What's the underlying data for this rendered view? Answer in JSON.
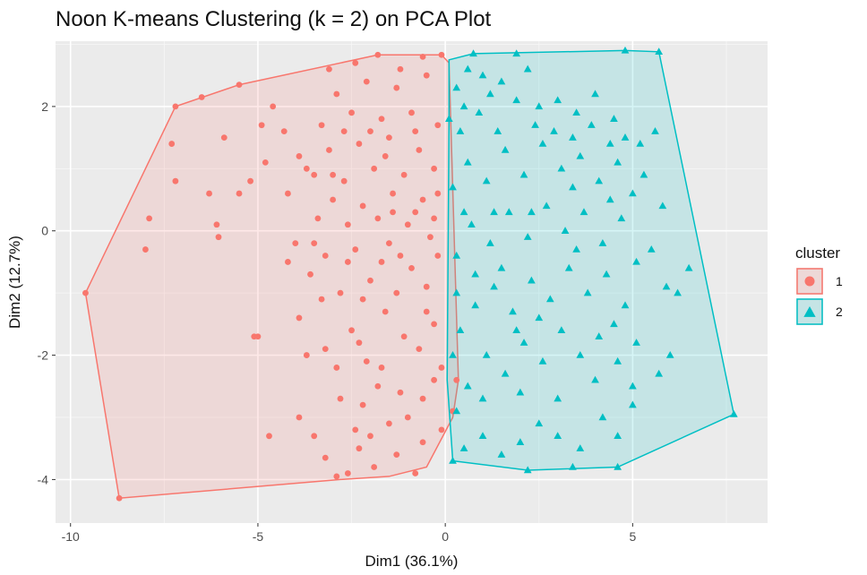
{
  "chart_data": {
    "type": "scatter",
    "title": "Noon K-means Clustering (k = 2) on PCA Plot",
    "xlabel": "Dim1 (36.1%)",
    "ylabel": "Dim2 (12.7%)",
    "xlim": [
      -10.4,
      8.6
    ],
    "ylim": [
      -4.7,
      3.05
    ],
    "x_ticks": [
      -10,
      -5,
      0,
      5
    ],
    "y_ticks": [
      -4,
      -2,
      0,
      2
    ],
    "x_tick_labels": [
      "-10",
      "-5",
      "0",
      "5"
    ],
    "y_tick_labels": [
      "-4",
      "-2",
      "0",
      "2"
    ],
    "grid": true,
    "legend": {
      "title": "cluster",
      "position": "right"
    },
    "series": [
      {
        "name": "1",
        "color": "#F8766D",
        "shape": "circle",
        "hull": [
          [
            -9.6,
            -1.0
          ],
          [
            -7.2,
            2.0
          ],
          [
            -5.5,
            2.35
          ],
          [
            -1.8,
            2.83
          ],
          [
            -0.1,
            2.83
          ],
          [
            0.1,
            2.7
          ],
          [
            0.35,
            -2.4
          ],
          [
            0.2,
            -3.0
          ],
          [
            -0.5,
            -3.8
          ],
          [
            -1.5,
            -3.95
          ],
          [
            -2.8,
            -4.0
          ],
          [
            -8.7,
            -4.3
          ]
        ],
        "points": [
          [
            -9.6,
            -1.0
          ],
          [
            -8.7,
            -4.3
          ],
          [
            -7.9,
            0.2
          ],
          [
            -8.0,
            -0.3
          ],
          [
            -7.2,
            2.0
          ],
          [
            -7.3,
            1.4
          ],
          [
            -7.2,
            0.8
          ],
          [
            -6.5,
            2.15
          ],
          [
            -6.3,
            0.6
          ],
          [
            -6.1,
            0.1
          ],
          [
            -6.05,
            -0.1
          ],
          [
            -5.9,
            1.5
          ],
          [
            -5.5,
            2.35
          ],
          [
            -5.5,
            0.6
          ],
          [
            -5.2,
            0.8
          ],
          [
            -5.1,
            -1.7
          ],
          [
            -4.8,
            1.1
          ],
          [
            -4.6,
            2.0
          ],
          [
            -4.3,
            1.6
          ],
          [
            -4.2,
            0.6
          ],
          [
            -4.2,
            -0.5
          ],
          [
            -4.0,
            -0.2
          ],
          [
            -3.9,
            1.2
          ],
          [
            -4.7,
            -3.3
          ],
          [
            -5.0,
            -1.7
          ],
          [
            -4.9,
            1.7
          ],
          [
            -3.7,
            -2.0
          ],
          [
            -3.9,
            -3.0
          ],
          [
            -3.2,
            -3.65
          ],
          [
            -3.5,
            -3.3
          ],
          [
            -2.9,
            -3.95
          ],
          [
            -2.6,
            -3.9
          ],
          [
            -2.4,
            -3.2
          ],
          [
            -2.2,
            -2.8
          ],
          [
            -2.0,
            -3.3
          ],
          [
            -1.8,
            -2.5
          ],
          [
            -1.5,
            -3.1
          ],
          [
            -1.3,
            -3.6
          ],
          [
            -1.0,
            -3.0
          ],
          [
            -0.8,
            -3.9
          ],
          [
            -0.6,
            -2.7
          ],
          [
            -0.3,
            -2.4
          ],
          [
            -0.1,
            -3.2
          ],
          [
            -0.1,
            -2.2
          ],
          [
            0.2,
            -2.9
          ],
          [
            0.3,
            -2.4
          ],
          [
            -3.9,
            -1.4
          ],
          [
            -3.2,
            -1.9
          ],
          [
            -2.9,
            -2.2
          ],
          [
            -2.5,
            -1.6
          ],
          [
            -2.1,
            -2.1
          ],
          [
            -1.6,
            -1.3
          ],
          [
            -1.1,
            -1.7
          ],
          [
            -0.7,
            -1.9
          ],
          [
            -0.3,
            -1.5
          ],
          [
            -3.6,
            -0.7
          ],
          [
            -3.2,
            -0.4
          ],
          [
            -2.8,
            -1.0
          ],
          [
            -2.4,
            -0.3
          ],
          [
            -2.0,
            -0.8
          ],
          [
            -1.7,
            -0.5
          ],
          [
            -1.3,
            -1.0
          ],
          [
            -0.9,
            -0.6
          ],
          [
            -0.5,
            -0.9
          ],
          [
            -0.2,
            -0.4
          ],
          [
            -3.4,
            0.2
          ],
          [
            -3.0,
            0.5
          ],
          [
            -2.6,
            0.1
          ],
          [
            -2.2,
            0.4
          ],
          [
            -1.8,
            0.2
          ],
          [
            -1.4,
            0.6
          ],
          [
            -1.0,
            0.1
          ],
          [
            -0.6,
            0.5
          ],
          [
            -0.3,
            0.2
          ],
          [
            -3.5,
            0.9
          ],
          [
            -3.1,
            1.3
          ],
          [
            -2.7,
            0.8
          ],
          [
            -2.3,
            1.4
          ],
          [
            -1.9,
            1.0
          ],
          [
            -1.5,
            1.5
          ],
          [
            -1.1,
            0.9
          ],
          [
            -0.7,
            1.3
          ],
          [
            -0.3,
            1.0
          ],
          [
            -3.3,
            1.7
          ],
          [
            -2.9,
            2.2
          ],
          [
            -2.5,
            1.9
          ],
          [
            -2.1,
            2.4
          ],
          [
            -1.7,
            1.8
          ],
          [
            -1.3,
            2.3
          ],
          [
            -0.9,
            1.9
          ],
          [
            -0.5,
            2.5
          ],
          [
            -0.2,
            1.7
          ],
          [
            -3.1,
            2.6
          ],
          [
            -2.4,
            2.7
          ],
          [
            -1.8,
            2.83
          ],
          [
            -1.2,
            2.6
          ],
          [
            -0.6,
            2.8
          ],
          [
            -0.1,
            2.83
          ],
          [
            -2.8,
            -2.7
          ],
          [
            -2.3,
            -3.5
          ],
          [
            -1.9,
            -3.8
          ],
          [
            -0.6,
            -3.4
          ],
          [
            -2.6,
            -0.5
          ],
          [
            -2.2,
            -1.1
          ],
          [
            -1.5,
            -0.2
          ],
          [
            -1.2,
            -0.4
          ],
          [
            -0.8,
            0.3
          ],
          [
            -0.4,
            -0.1
          ],
          [
            -2.7,
            1.6
          ],
          [
            -2.0,
            1.6
          ],
          [
            -1.6,
            1.2
          ],
          [
            -0.8,
            1.6
          ],
          [
            -3.0,
            0.9
          ],
          [
            -1.4,
            0.3
          ],
          [
            -3.7,
            1.0
          ],
          [
            -3.5,
            -0.2
          ],
          [
            -3.3,
            -1.1
          ],
          [
            -2.3,
            -1.8
          ],
          [
            -1.7,
            -2.2
          ],
          [
            -1.2,
            -2.6
          ],
          [
            -0.5,
            -1.3
          ],
          [
            -0.2,
            0.6
          ]
        ]
      },
      {
        "name": "2",
        "color": "#00BFC4",
        "shape": "triangle",
        "hull": [
          [
            0.1,
            2.75
          ],
          [
            0.75,
            2.85
          ],
          [
            4.8,
            2.9
          ],
          [
            5.7,
            2.88
          ],
          [
            7.7,
            -2.95
          ],
          [
            4.6,
            -3.8
          ],
          [
            2.2,
            -3.85
          ],
          [
            0.2,
            -3.7
          ],
          [
            0.05,
            -2.4
          ],
          [
            0.1,
            1.8
          ]
        ],
        "points": [
          [
            0.75,
            2.85
          ],
          [
            1.9,
            2.85
          ],
          [
            4.8,
            2.9
          ],
          [
            5.7,
            2.88
          ],
          [
            7.7,
            -2.95
          ],
          [
            4.6,
            -3.8
          ],
          [
            3.4,
            -3.8
          ],
          [
            2.2,
            -3.85
          ],
          [
            0.2,
            -3.7
          ],
          [
            0.1,
            1.8
          ],
          [
            0.3,
            2.3
          ],
          [
            0.6,
            2.6
          ],
          [
            1.0,
            2.5
          ],
          [
            1.5,
            2.4
          ],
          [
            2.2,
            2.6
          ],
          [
            2.5,
            2.0
          ],
          [
            3.0,
            2.1
          ],
          [
            3.5,
            1.9
          ],
          [
            4.0,
            2.2
          ],
          [
            4.5,
            1.8
          ],
          [
            4.8,
            1.5
          ],
          [
            5.2,
            1.4
          ],
          [
            5.8,
            0.4
          ],
          [
            5.5,
            -0.3
          ],
          [
            5.3,
            0.9
          ],
          [
            5.6,
            1.6
          ],
          [
            5.9,
            -0.9
          ],
          [
            6.2,
            -1.0
          ],
          [
            6.5,
            -0.6
          ],
          [
            6.0,
            -2.0
          ],
          [
            5.7,
            -2.3
          ],
          [
            5.0,
            -2.8
          ],
          [
            4.6,
            -3.3
          ],
          [
            4.2,
            -3.0
          ],
          [
            3.6,
            -3.5
          ],
          [
            3.0,
            -3.3
          ],
          [
            2.5,
            -3.1
          ],
          [
            2.0,
            -3.4
          ],
          [
            1.5,
            -3.6
          ],
          [
            1.0,
            -3.3
          ],
          [
            0.5,
            -3.5
          ],
          [
            0.3,
            -2.9
          ],
          [
            0.6,
            -2.5
          ],
          [
            1.1,
            -2.0
          ],
          [
            1.6,
            -2.3
          ],
          [
            2.1,
            -1.8
          ],
          [
            2.6,
            -2.1
          ],
          [
            3.1,
            -1.6
          ],
          [
            3.6,
            -2.0
          ],
          [
            4.1,
            -1.7
          ],
          [
            4.6,
            -2.1
          ],
          [
            5.1,
            -1.8
          ],
          [
            0.4,
            -1.6
          ],
          [
            0.8,
            -1.2
          ],
          [
            1.3,
            -0.9
          ],
          [
            1.8,
            -1.3
          ],
          [
            2.3,
            -0.8
          ],
          [
            2.8,
            -1.1
          ],
          [
            3.3,
            -0.6
          ],
          [
            3.8,
            -1.0
          ],
          [
            4.3,
            -0.7
          ],
          [
            4.8,
            -1.2
          ],
          [
            0.3,
            -0.4
          ],
          [
            0.7,
            0.1
          ],
          [
            1.2,
            -0.2
          ],
          [
            1.7,
            0.3
          ],
          [
            2.2,
            -0.1
          ],
          [
            2.7,
            0.4
          ],
          [
            3.2,
            0.0
          ],
          [
            3.7,
            0.3
          ],
          [
            4.2,
            -0.2
          ],
          [
            4.7,
            0.2
          ],
          [
            5.1,
            -0.5
          ],
          [
            0.2,
            0.7
          ],
          [
            0.6,
            1.1
          ],
          [
            1.1,
            0.8
          ],
          [
            1.6,
            1.3
          ],
          [
            2.1,
            0.9
          ],
          [
            2.6,
            1.4
          ],
          [
            3.1,
            1.0
          ],
          [
            3.6,
            1.2
          ],
          [
            4.1,
            0.8
          ],
          [
            4.6,
            1.1
          ],
          [
            5.0,
            0.6
          ],
          [
            0.4,
            1.6
          ],
          [
            0.9,
            1.9
          ],
          [
            1.4,
            1.6
          ],
          [
            1.9,
            2.1
          ],
          [
            2.4,
            1.7
          ],
          [
            2.9,
            1.6
          ],
          [
            3.4,
            1.5
          ],
          [
            3.9,
            1.7
          ],
          [
            4.4,
            1.4
          ],
          [
            0.5,
            0.3
          ],
          [
            1.5,
            -0.6
          ],
          [
            2.5,
            -1.4
          ],
          [
            3.5,
            -0.3
          ],
          [
            4.5,
            -1.5
          ],
          [
            1.0,
            -2.7
          ],
          [
            2.0,
            -2.6
          ],
          [
            3.0,
            -2.7
          ],
          [
            4.0,
            -2.4
          ],
          [
            5.0,
            -2.5
          ],
          [
            0.3,
            -1.0
          ],
          [
            0.2,
            -2.0
          ],
          [
            0.5,
            2.0
          ],
          [
            1.2,
            2.2
          ],
          [
            0.8,
            -0.7
          ],
          [
            1.9,
            -1.6
          ],
          [
            3.4,
            0.7
          ],
          [
            4.4,
            0.5
          ],
          [
            2.3,
            0.3
          ],
          [
            1.3,
            0.3
          ]
        ]
      }
    ]
  }
}
